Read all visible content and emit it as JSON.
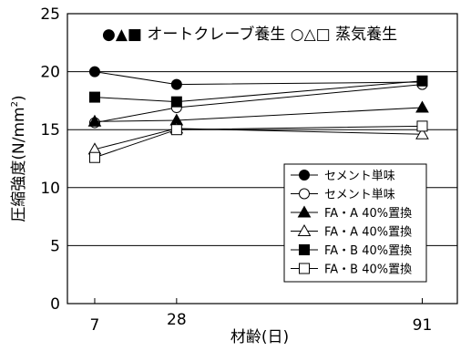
{
  "chart_data": {
    "type": "line",
    "x": [
      7,
      28,
      91
    ],
    "xticks": [
      7,
      28,
      91
    ],
    "ylim": [
      0,
      25
    ],
    "yticks": [
      0,
      5,
      10,
      15,
      20,
      25
    ],
    "grid": "horizontal",
    "ylabel_main": "圧縮強度(N/mm",
    "ylabel_sup": "2",
    "ylabel_close": ")",
    "xlabel": "材齢(日)",
    "annotation": "●▲■ オートクレーブ養生 ○△□ 蒸気養生",
    "legend_position": "bottom-right",
    "series": [
      {
        "name": "セメント単味",
        "marker": "circle",
        "filled": true,
        "values": [
          20.0,
          18.9,
          19.1
        ]
      },
      {
        "name": "セメント単味",
        "marker": "circle",
        "filled": false,
        "values": [
          15.6,
          16.9,
          18.9
        ]
      },
      {
        "name": "FA・A 40%置換",
        "marker": "triangle",
        "filled": true,
        "values": [
          15.7,
          15.8,
          16.9
        ]
      },
      {
        "name": "FA・A 40%置換",
        "marker": "triangle",
        "filled": false,
        "values": [
          13.3,
          15.1,
          14.6
        ]
      },
      {
        "name": "FA・B 40%置換",
        "marker": "square",
        "filled": true,
        "values": [
          17.8,
          17.4,
          19.2
        ]
      },
      {
        "name": "FA・B 40%置換",
        "marker": "square",
        "filled": false,
        "values": [
          12.6,
          15.0,
          15.3
        ]
      }
    ]
  }
}
